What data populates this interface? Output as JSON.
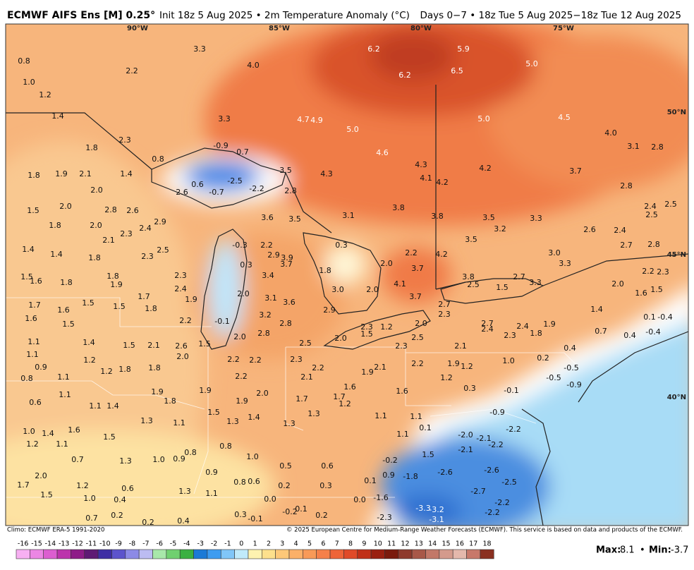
{
  "header": {
    "title": "ECMWF AIFS Ens [M] 0.25°",
    "subtitle": "Init 18z 5 Aug 2025 • 2m Temperature Anomaly (°C)",
    "period": "Days 0−7 • 18z Tue 5 Aug 2025−18z Tue 12 Aug 2025"
  },
  "map": {
    "longitudes": [
      "90°W",
      "85°W",
      "80°W",
      "75°W"
    ],
    "latitudes": [
      "50°N",
      "45°N",
      "40°N"
    ],
    "labels": [
      "0.8",
      "1.0",
      "1.2",
      "1.4",
      "2.2",
      "4.0",
      "3.3",
      "6.2",
      "6.2",
      "5.9",
      "6.5",
      "5.0",
      "4.7",
      "4.9",
      "5.0",
      "5.0",
      "4.5",
      "4.0",
      "3.3",
      "1.8",
      "2.3",
      "0.8",
      "-0.9",
      "0.7",
      "-2.5",
      "-2.2",
      "-0.7",
      "0.6",
      "3.5",
      "4.3",
      "4.6",
      "4.3",
      "4.1",
      "4.2",
      "4.2",
      "3.7",
      "3.1",
      "2.8",
      "2.8",
      "1.8",
      "1.9",
      "2.1",
      "1.4",
      "2.0",
      "2.6",
      "2.8",
      "2.0",
      "1.5",
      "2.8",
      "2.6",
      "3.1",
      "3.8",
      "3.8",
      "3.5",
      "3.3",
      "2.6",
      "2.4",
      "2.5",
      "2.5",
      "2.4",
      "3.6",
      "3.5",
      "2.0",
      "1.8",
      "2.3",
      "2.4",
      "2.9",
      "2.1",
      "1.4",
      "1.4",
      "2.5",
      "2.3",
      "1.8",
      "-0.3",
      "2.2",
      "2.9",
      "3.9",
      "3.7",
      "0.3",
      "2.2",
      "4.2",
      "3.5",
      "3.2",
      "3.0",
      "3.3",
      "2.7",
      "2.8",
      "1.5",
      "1.6",
      "1.8",
      "1.8",
      "1.9",
      "2.3",
      "2.4",
      "0.3",
      "3.4",
      "1.8",
      "2.0",
      "3.7",
      "4.1",
      "3.8",
      "2.5",
      "1.5",
      "2.7",
      "3.3",
      "2.0",
      "2.2",
      "2.3",
      "1.6",
      "1.5",
      "1.7",
      "1.6",
      "1.5",
      "1.5",
      "1.8",
      "1.7",
      "1.9",
      "2.0",
      "3.1",
      "3.6",
      "3.0",
      "2.9",
      "2.0",
      "3.7",
      "2.7",
      "1.4",
      "0.1",
      "-0.4",
      "1.6",
      "1.5",
      "-0.1",
      "3.2",
      "2.2",
      "2.8",
      "2.8",
      "2.3",
      "1.2",
      "2.0",
      "2.3",
      "2.7",
      "2.4",
      "2.3",
      "2.4",
      "1.8",
      "1.9",
      "0.7",
      "0.4",
      "-0.4",
      "1.1",
      "1.4",
      "1.5",
      "2.1",
      "2.6",
      "1.5",
      "2.0",
      "2.5",
      "2.0",
      "1.5",
      "2.3",
      "2.5",
      "2.1",
      "0.4",
      "1.1",
      "0.9",
      "1.2",
      "2.0",
      "2.2",
      "2.2",
      "2.3",
      "2.2",
      "1.9",
      "2.1",
      "2.2",
      "1.9",
      "1.2",
      "1.0",
      "0.2",
      "-0.5",
      "0.8",
      "1.1",
      "1.2",
      "1.8",
      "1.8",
      "2.2",
      "2.1",
      "1.6",
      "1.6",
      "1.2",
      "-0.5",
      "-0.9",
      "-0.1",
      "0.3",
      "0.6",
      "1.1",
      "1.1",
      "1.4",
      "1.9",
      "1.8",
      "1.9",
      "1.9",
      "2.0",
      "1.7",
      "1.7",
      "1.2",
      "1.5",
      "1.3",
      "1.4",
      "1.3",
      "1.1",
      "1.1",
      "-0.9",
      "1.3",
      "1.1",
      "1.0",
      "1.4",
      "1.6",
      "1.5",
      "1.2",
      "1.1",
      "1.3",
      "0.1",
      "1.1",
      "-2.0",
      "-2.1",
      "-2.2",
      "-2.2",
      "1.5",
      "-2.1",
      "0.8",
      "1.0",
      "0.8",
      "1.0",
      "0.9",
      "1.3",
      "0.7",
      "-0.2",
      "0.9",
      "-1.8",
      "-2.6",
      "-2.6",
      "-2.5",
      "0.9",
      "0.5",
      "0.6",
      "2.0",
      "1.7",
      "1.2",
      "0.6",
      "0.8",
      "0.6",
      "0.2",
      "0.3",
      "0.1",
      "-2.7",
      "1.3",
      "1.1",
      "1.5",
      "0.4",
      "0.0",
      "0.0",
      "-1.6",
      "-2.2",
      "1.0",
      "0.7",
      "0.2",
      "0.4",
      "0.3",
      "-0.1",
      "-0.2",
      "0.1",
      "0.2",
      "-2.3",
      "-3.3",
      "-3.2",
      "-3.1",
      "-2.2",
      "0.2"
    ]
  },
  "footer": {
    "climo": "Climo: ECMWF ERA-5 1991-2020",
    "copyright": "© 2025 European Centre for Medium-Range Weather Forecasts (ECMWF). This service is based on data and products of the ECMWF."
  },
  "colorbar": {
    "labels": [
      -16,
      -15,
      -14,
      -13,
      -12,
      -11,
      -10,
      -9,
      -8,
      -7,
      -6,
      -5,
      -4,
      -3,
      -2,
      -1,
      0,
      1,
      2,
      3,
      4,
      5,
      6,
      7,
      8,
      9,
      10,
      11,
      12,
      13,
      14,
      15,
      16,
      17,
      18
    ],
    "colors": [
      "#f7b0f2",
      "#ec86e4",
      "#dc5ed0",
      "#bc34ac",
      "#8e1c88",
      "#5e1a74",
      "#3e2ea4",
      "#5c54cc",
      "#8c8ae6",
      "#bcbcf2",
      "#a8e8aa",
      "#70d070",
      "#3ab042",
      "#1c7ad6",
      "#3e9cf0",
      "#80c6f8",
      "#c0eafa",
      "#fdf2b0",
      "#fde08c",
      "#fdc878",
      "#fbb068",
      "#f89a58",
      "#f5804a",
      "#ee6438",
      "#e04a28",
      "#c03018",
      "#9a2010",
      "#7a1a0c",
      "#8e3a2c",
      "#a85848",
      "#c27868",
      "#d49a8c",
      "#e4b8ac",
      "#c8786a",
      "#8a3020"
    ],
    "max_label": "Max:",
    "max": "8.1",
    "separator": "•",
    "min_label": "Min:",
    "min": "-3.7"
  }
}
